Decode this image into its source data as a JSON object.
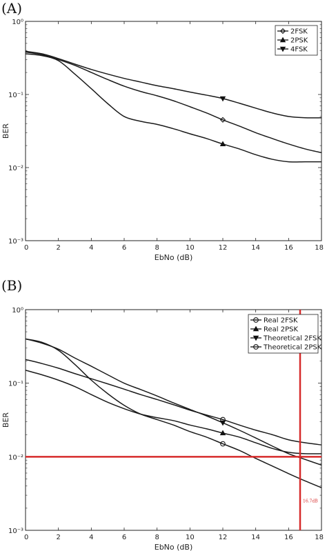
{
  "chart_data": [
    {
      "panel_label": "(A)",
      "type": "line",
      "xlabel": "EbNo (dB)",
      "ylabel": "BER",
      "xlim": [
        0,
        18
      ],
      "ylim": [
        0.001,
        1
      ],
      "yscale": "log",
      "xticks": [
        0,
        2,
        4,
        6,
        8,
        10,
        12,
        14,
        16,
        18
      ],
      "xtick_labels": [
        "0",
        "2",
        "4",
        "6",
        "8",
        "10",
        "12",
        "14",
        "16",
        "18"
      ],
      "ytick_labels": [
        "10⁻³",
        "10⁻²",
        "10⁻¹",
        "10⁰"
      ],
      "grid": false,
      "legend_position": "top-right",
      "x": [
        0,
        1,
        2,
        3,
        4,
        5,
        6,
        7,
        8,
        9,
        10,
        11,
        12,
        13,
        14,
        15,
        16,
        17,
        18
      ],
      "series": [
        {
          "name": "2FSK",
          "marker": "diamond",
          "marker_at": 12,
          "values": [
            0.38,
            0.35,
            0.3,
            0.25,
            0.2,
            0.16,
            0.13,
            0.11,
            0.096,
            0.082,
            0.068,
            0.056,
            0.045,
            0.037,
            0.03,
            0.025,
            0.021,
            0.018,
            0.016
          ]
        },
        {
          "name": "2PSK",
          "marker": "triangle-up",
          "marker_at": 12,
          "values": [
            0.36,
            0.34,
            0.29,
            0.19,
            0.12,
            0.075,
            0.05,
            0.043,
            0.039,
            0.034,
            0.029,
            0.025,
            0.021,
            0.018,
            0.015,
            0.013,
            0.012,
            0.012,
            0.012
          ]
        },
        {
          "name": "4FSK",
          "marker": "triangle-down",
          "marker_at": 12,
          "values": [
            0.39,
            0.36,
            0.31,
            0.26,
            0.22,
            0.19,
            0.166,
            0.148,
            0.132,
            0.12,
            0.108,
            0.098,
            0.088,
            0.076,
            0.065,
            0.056,
            0.05,
            0.048,
            0.048
          ]
        }
      ]
    },
    {
      "panel_label": "(B)",
      "type": "line",
      "xlabel": "EbNo (dB)",
      "ylabel": "BER",
      "xlim": [
        0,
        18
      ],
      "ylim": [
        0.001,
        1
      ],
      "yscale": "log",
      "xticks": [
        0,
        2,
        4,
        6,
        8,
        10,
        12,
        14,
        16,
        18
      ],
      "xtick_labels": [
        "0",
        "2",
        "4",
        "6",
        "8",
        "10",
        "12",
        "14",
        "16",
        "18"
      ],
      "ytick_labels": [
        "10⁻³",
        "10⁻²",
        "10⁻¹",
        "10⁰"
      ],
      "grid": false,
      "legend_position": "top-right",
      "x": [
        0,
        1,
        2,
        3,
        4,
        5,
        6,
        7,
        8,
        9,
        10,
        11,
        12,
        13,
        14,
        15,
        16,
        17,
        18
      ],
      "series": [
        {
          "name": "Real 2FSK",
          "marker": "circle-dot",
          "marker_at": 12,
          "values": [
            0.21,
            0.185,
            0.16,
            0.135,
            0.115,
            0.098,
            0.083,
            0.07,
            0.06,
            0.051,
            0.043,
            0.037,
            0.032,
            0.027,
            0.023,
            0.02,
            0.017,
            0.0155,
            0.0145
          ]
        },
        {
          "name": "Real 2PSK",
          "marker": "triangle-up",
          "marker_at": 12,
          "values": [
            0.15,
            0.13,
            0.11,
            0.09,
            0.07,
            0.055,
            0.045,
            0.038,
            0.034,
            0.031,
            0.027,
            0.024,
            0.021,
            0.0185,
            0.0155,
            0.013,
            0.0115,
            0.011,
            0.011
          ]
        },
        {
          "name": "Theoretical 2FSK",
          "marker": "triangle-down",
          "marker_at": 12,
          "values": [
            0.4,
            0.35,
            0.29,
            0.22,
            0.17,
            0.13,
            0.1,
            0.082,
            0.067,
            0.054,
            0.044,
            0.036,
            0.029,
            0.023,
            0.018,
            0.014,
            0.011,
            0.0092,
            0.0077
          ]
        },
        {
          "name": "Theoretical 2PSK",
          "marker": "circle",
          "marker_at": 12,
          "values": [
            0.4,
            0.36,
            0.28,
            0.18,
            0.11,
            0.072,
            0.05,
            0.038,
            0.032,
            0.027,
            0.022,
            0.0185,
            0.015,
            0.0122,
            0.0095,
            0.0075,
            0.0059,
            0.0047,
            0.0038
          ]
        }
      ],
      "reference_lines": {
        "horizontal_y": 0.01,
        "vertical_x": 16.7,
        "color": "#d62a2a",
        "annotation": "16.7dB"
      }
    }
  ]
}
